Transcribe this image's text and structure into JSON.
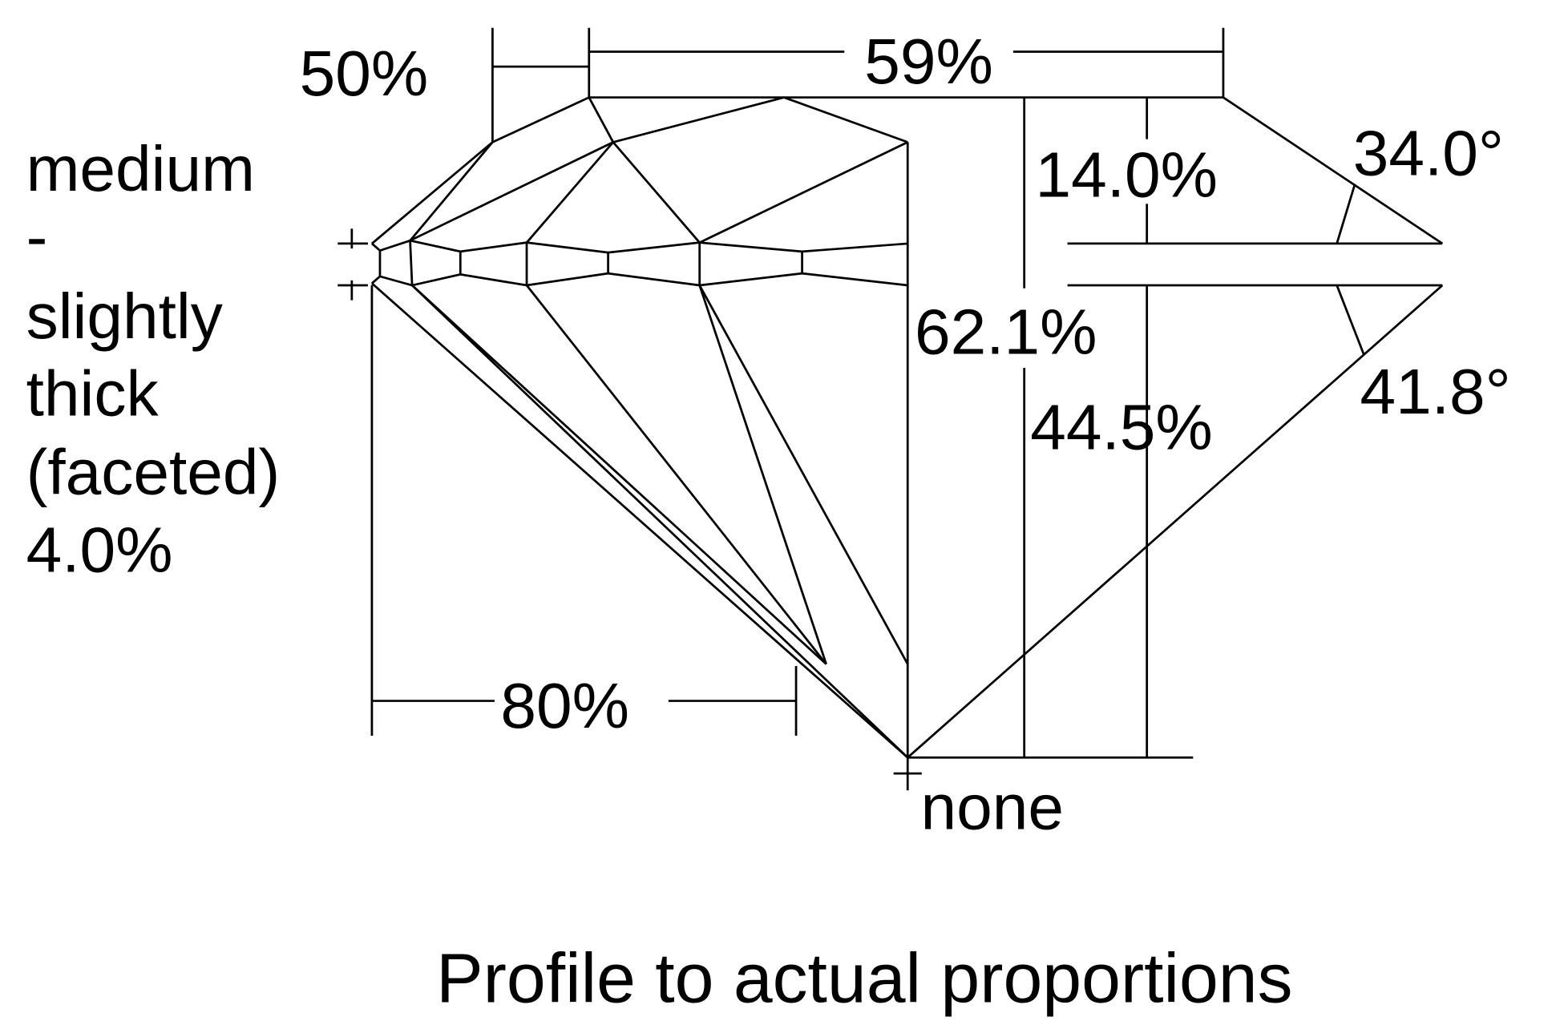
{
  "diagram": {
    "title": "Profile to actual proportions",
    "labels": {
      "lower_half_length": "50%",
      "table": "59%",
      "crown_height": "14.0%",
      "crown_angle": "34.0°",
      "total_depth": "62.1%",
      "pavilion_depth": "44.5%",
      "pavilion_angle": "41.8°",
      "star_length": "80%",
      "culet": "none"
    },
    "girdle": {
      "lines": [
        "medium",
        "-",
        "slightly",
        "thick",
        "(faceted)",
        "4.0%"
      ]
    },
    "line_color": "#000000",
    "background": "#ffffff"
  }
}
